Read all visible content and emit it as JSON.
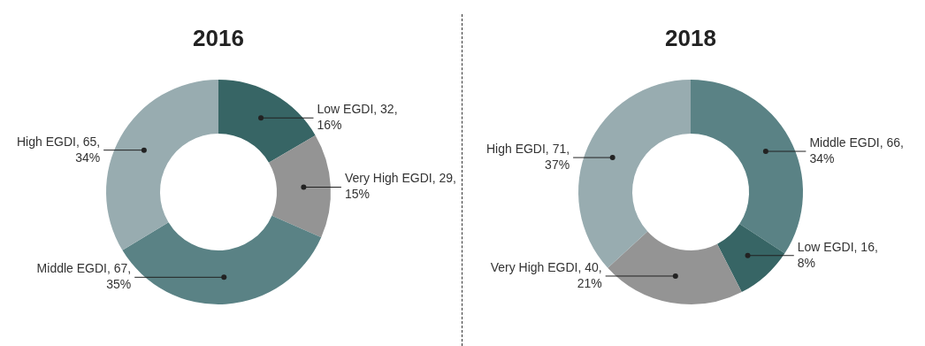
{
  "chart_data": [
    {
      "type": "doughnut",
      "title": "2016",
      "categories": [
        "Low EGDI",
        "Very High EGDI",
        "Middle EGDI",
        "High EGDI"
      ],
      "values": [
        32,
        29,
        67,
        65
      ],
      "value_labels": [
        "Low EGDI, 32, 16%",
        "Very High EGDI, 29, 15%",
        "Middle EGDI, 67, 35%",
        "High EGDI, 65, 34%"
      ],
      "colors": [
        "#376565",
        "#949494",
        "#5a8285",
        "#98acb0"
      ],
      "data_labels": true
    },
    {
      "type": "doughnut",
      "title": "2018",
      "categories": [
        "Middle EGDI",
        "Low EGDI",
        "Very High EGDI",
        "High EGDI"
      ],
      "values": [
        66,
        16,
        40,
        71
      ],
      "value_labels": [
        "Middle EGDI, 66, 34%",
        "Low EGDI, 16, 8%",
        "Very High EGDI, 40, 21%",
        "High EGDI, 71, 37%"
      ],
      "colors": [
        "#5a8285",
        "#376565",
        "#949494",
        "#98acb0"
      ],
      "data_labels": true
    }
  ]
}
